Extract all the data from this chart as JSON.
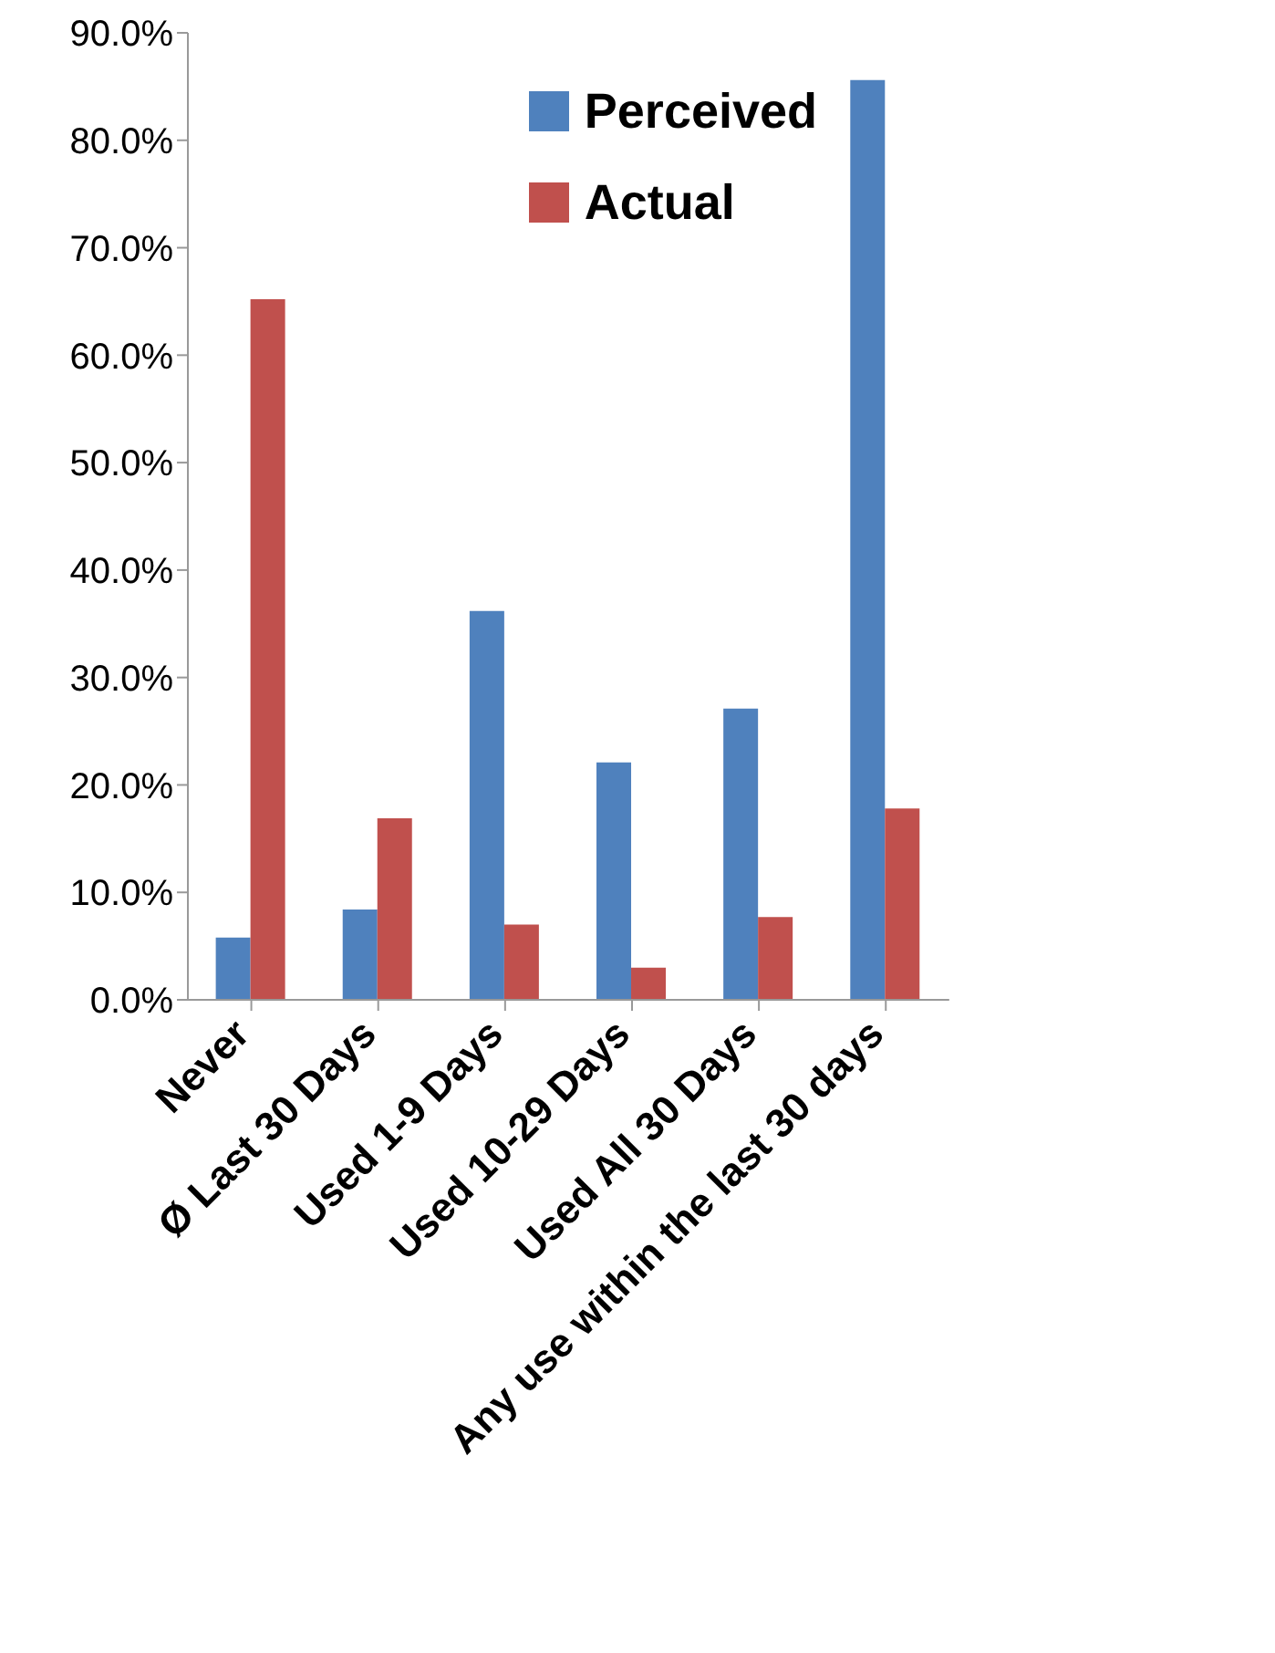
{
  "chart_data": {
    "type": "bar",
    "categories": [
      "Never",
      "Ø Last 30 Days",
      "Used 1-9 Days",
      "Used 10-29 Days",
      "Used All 30 Days",
      "Any use within the last 30 days"
    ],
    "series": [
      {
        "name": "Perceived",
        "color": "#4f81bd",
        "values": [
          5.8,
          8.4,
          36.2,
          22.1,
          27.1,
          85.6
        ]
      },
      {
        "name": "Actual",
        "color": "#c0504d",
        "values": [
          65.2,
          16.9,
          7.0,
          3.0,
          7.7,
          17.8
        ]
      }
    ],
    "ylim": [
      0,
      90
    ],
    "yticks": [
      {
        "value": 0,
        "label": "0.0%"
      },
      {
        "value": 10,
        "label": "10.0%"
      },
      {
        "value": 20,
        "label": "20.0%"
      },
      {
        "value": 30,
        "label": "30.0%"
      },
      {
        "value": 40,
        "label": "40.0%"
      },
      {
        "value": 50,
        "label": "50.0%"
      },
      {
        "value": 60,
        "label": "60.0%"
      },
      {
        "value": 70,
        "label": "70.0%"
      },
      {
        "value": 80,
        "label": "80.0%"
      },
      {
        "value": 90,
        "label": "90.0%"
      }
    ],
    "grid": false,
    "legend": "top right"
  }
}
